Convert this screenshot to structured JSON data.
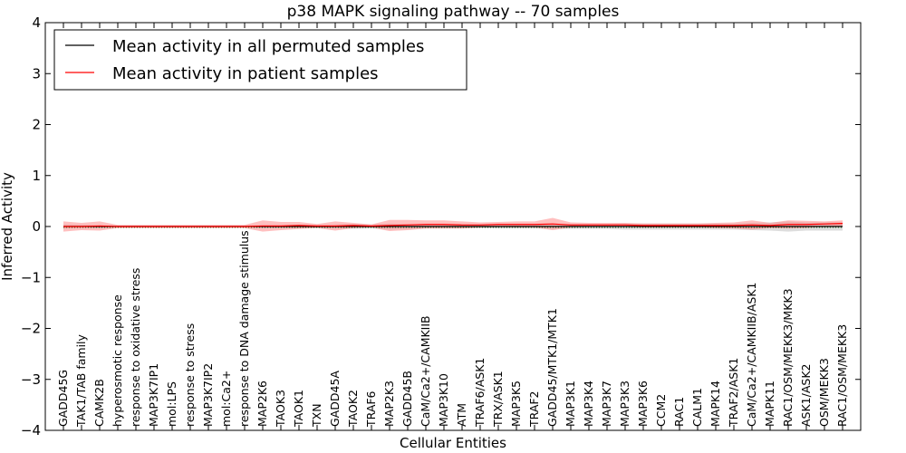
{
  "chart_data": {
    "type": "line",
    "title": "p38 MAPK signaling pathway -- 70 samples",
    "xlabel": "Cellular Entities",
    "ylabel": "Inferred Activity",
    "ylim": [
      -4,
      4
    ],
    "yticks": [
      -4,
      -3,
      -2,
      -1,
      0,
      1,
      2,
      3,
      4
    ],
    "ytick_labels": [
      "−4",
      "−3",
      "−2",
      "−1",
      "0",
      "1",
      "2",
      "3",
      "4"
    ],
    "grid": false,
    "legend_position": "top-left",
    "categories": [
      "GADD45G",
      "TAK1/TAB family",
      "CAMK2B",
      "hyperosmotic response",
      "response to oxidative stress",
      "MAP3K7IP1",
      "mol:LPS",
      "response to stress",
      "MAP3K7IP2",
      "mol:Ca2+",
      "response to DNA damage stimulus",
      "MAP2K6",
      "TAOK3",
      "TAOK1",
      "TXN",
      "GADD45A",
      "TAOK2",
      "TRAF6",
      "MAP2K3",
      "GADD45B",
      "CaM/Ca2+/CAMKIIB",
      "MAP3K10",
      "ATM",
      "TRAF6/ASK1",
      "TRX/ASK1",
      "MAP3K5",
      "TRAF2",
      "GADD45/MTK1/MTK1",
      "MAP3K1",
      "MAP3K4",
      "MAP3K7",
      "MAP3K3",
      "MAP3K6",
      "CCM2",
      "RAC1",
      "CALM1",
      "MAPK14",
      "TRAF2/ASK1",
      "CaM/Ca2+/CAMKIIB/ASK1",
      "MAPK11",
      "RAC1/OSM/MEKK3/MKK3",
      "ASK1/ASK2",
      "OSM/MEKK3",
      "RAC1/OSM/MEKK3"
    ],
    "series": [
      {
        "name": "Mean activity in all permuted samples",
        "color": "#000000",
        "band_color": "#b4b4b4",
        "values": [
          0.0,
          0.0,
          0.0,
          0.0,
          0.0,
          0.0,
          0.0,
          0.0,
          0.0,
          0.0,
          0.0,
          0.0,
          0.0,
          0.0,
          0.0,
          0.0,
          0.0,
          0.0,
          0.0,
          0.0,
          0.0,
          0.0,
          0.0,
          0.0,
          0.0,
          0.0,
          0.0,
          0.0,
          0.0,
          0.0,
          0.0,
          0.0,
          0.0,
          0.0,
          0.0,
          0.0,
          0.0,
          0.0,
          0.0,
          0.0,
          0.0,
          0.0,
          0.0,
          0.0
        ],
        "band": [
          0.04,
          0.03,
          0.03,
          0.02,
          0.02,
          0.02,
          0.02,
          0.02,
          0.02,
          0.02,
          0.02,
          0.03,
          0.03,
          0.03,
          0.03,
          0.04,
          0.05,
          0.04,
          0.06,
          0.05,
          0.04,
          0.04,
          0.04,
          0.03,
          0.04,
          0.04,
          0.04,
          0.05,
          0.05,
          0.05,
          0.05,
          0.06,
          0.06,
          0.06,
          0.06,
          0.06,
          0.06,
          0.06,
          0.07,
          0.08,
          0.1,
          0.08,
          0.08,
          0.08
        ]
      },
      {
        "name": "Mean activity in patient samples",
        "color": "#ff0000",
        "band_color": "#ff8080",
        "values": [
          0.0,
          0.0,
          0.01,
          0.0,
          0.0,
          0.0,
          0.0,
          0.0,
          0.0,
          0.0,
          0.0,
          0.01,
          0.01,
          0.02,
          0.01,
          0.01,
          0.02,
          0.01,
          0.02,
          0.03,
          0.04,
          0.04,
          0.03,
          0.03,
          0.04,
          0.04,
          0.04,
          0.05,
          0.03,
          0.03,
          0.03,
          0.03,
          0.02,
          0.02,
          0.02,
          0.02,
          0.02,
          0.02,
          0.03,
          0.02,
          0.04,
          0.04,
          0.05,
          0.06
        ],
        "band": [
          0.1,
          0.07,
          0.09,
          0.03,
          0.03,
          0.03,
          0.03,
          0.03,
          0.03,
          0.03,
          0.03,
          0.11,
          0.08,
          0.07,
          0.04,
          0.09,
          0.05,
          0.03,
          0.11,
          0.1,
          0.08,
          0.08,
          0.07,
          0.05,
          0.05,
          0.06,
          0.06,
          0.12,
          0.05,
          0.04,
          0.04,
          0.04,
          0.04,
          0.04,
          0.04,
          0.04,
          0.05,
          0.06,
          0.09,
          0.05,
          0.08,
          0.07,
          0.05,
          0.06
        ]
      }
    ]
  }
}
